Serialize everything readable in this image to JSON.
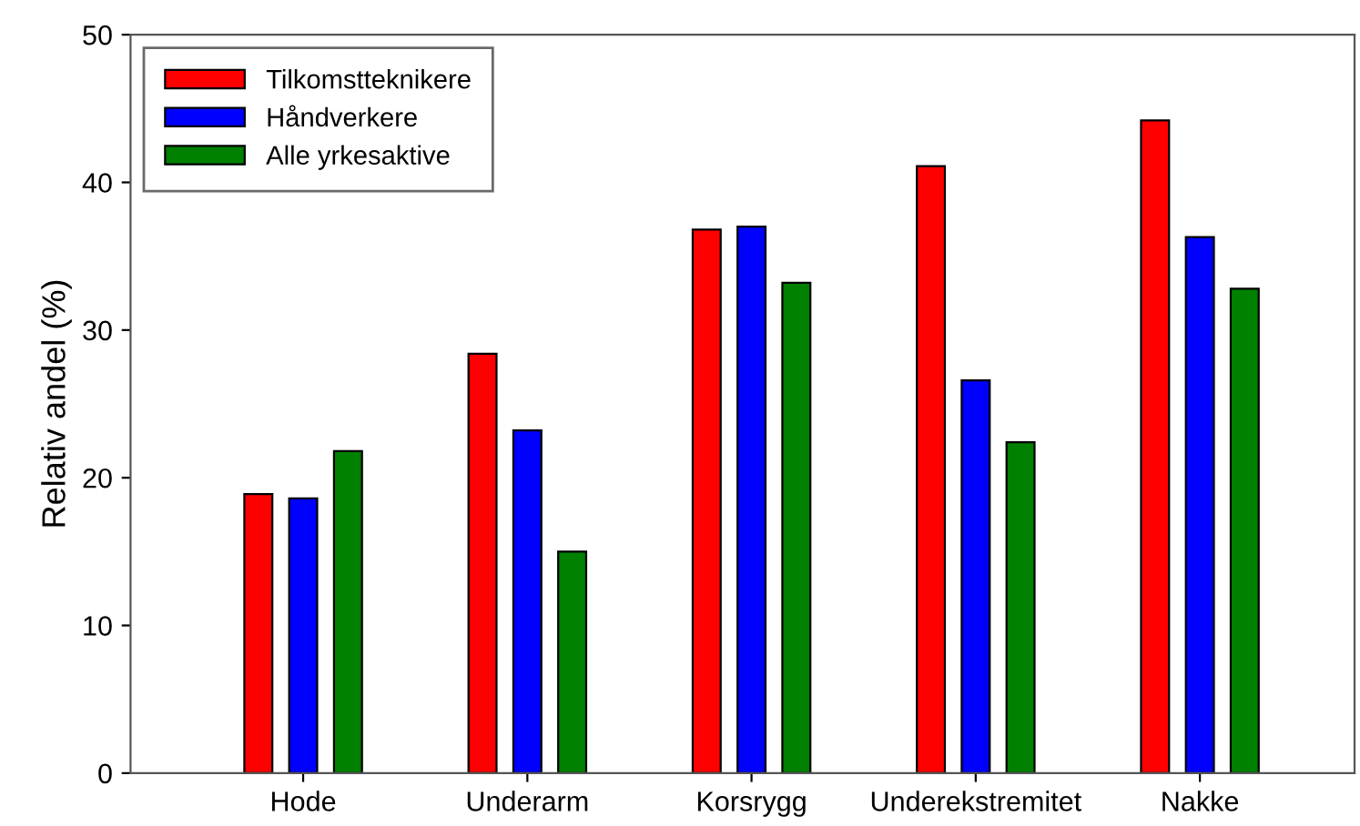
{
  "chart_data": {
    "type": "bar",
    "ylabel": "Relativ andel (%)",
    "categories": [
      "Hode",
      "Underarm",
      "Korsrygg",
      "Underekstremitet",
      "Nakke"
    ],
    "series": [
      {
        "name": "Tilkomstteknikere",
        "color": "#ff0000",
        "values": [
          18.9,
          28.4,
          36.8,
          41.1,
          44.2
        ]
      },
      {
        "name": "Håndverkere",
        "color": "#0000ff",
        "values": [
          18.6,
          23.2,
          37.0,
          26.6,
          36.3
        ]
      },
      {
        "name": "Alle yrkesaktive",
        "color": "#008000",
        "values": [
          21.8,
          15.0,
          33.2,
          22.4,
          32.8
        ]
      }
    ],
    "ylim": [
      0,
      50
    ],
    "yticks": [
      0,
      10,
      20,
      30,
      40,
      50
    ],
    "grid": false,
    "legend": "top left"
  }
}
